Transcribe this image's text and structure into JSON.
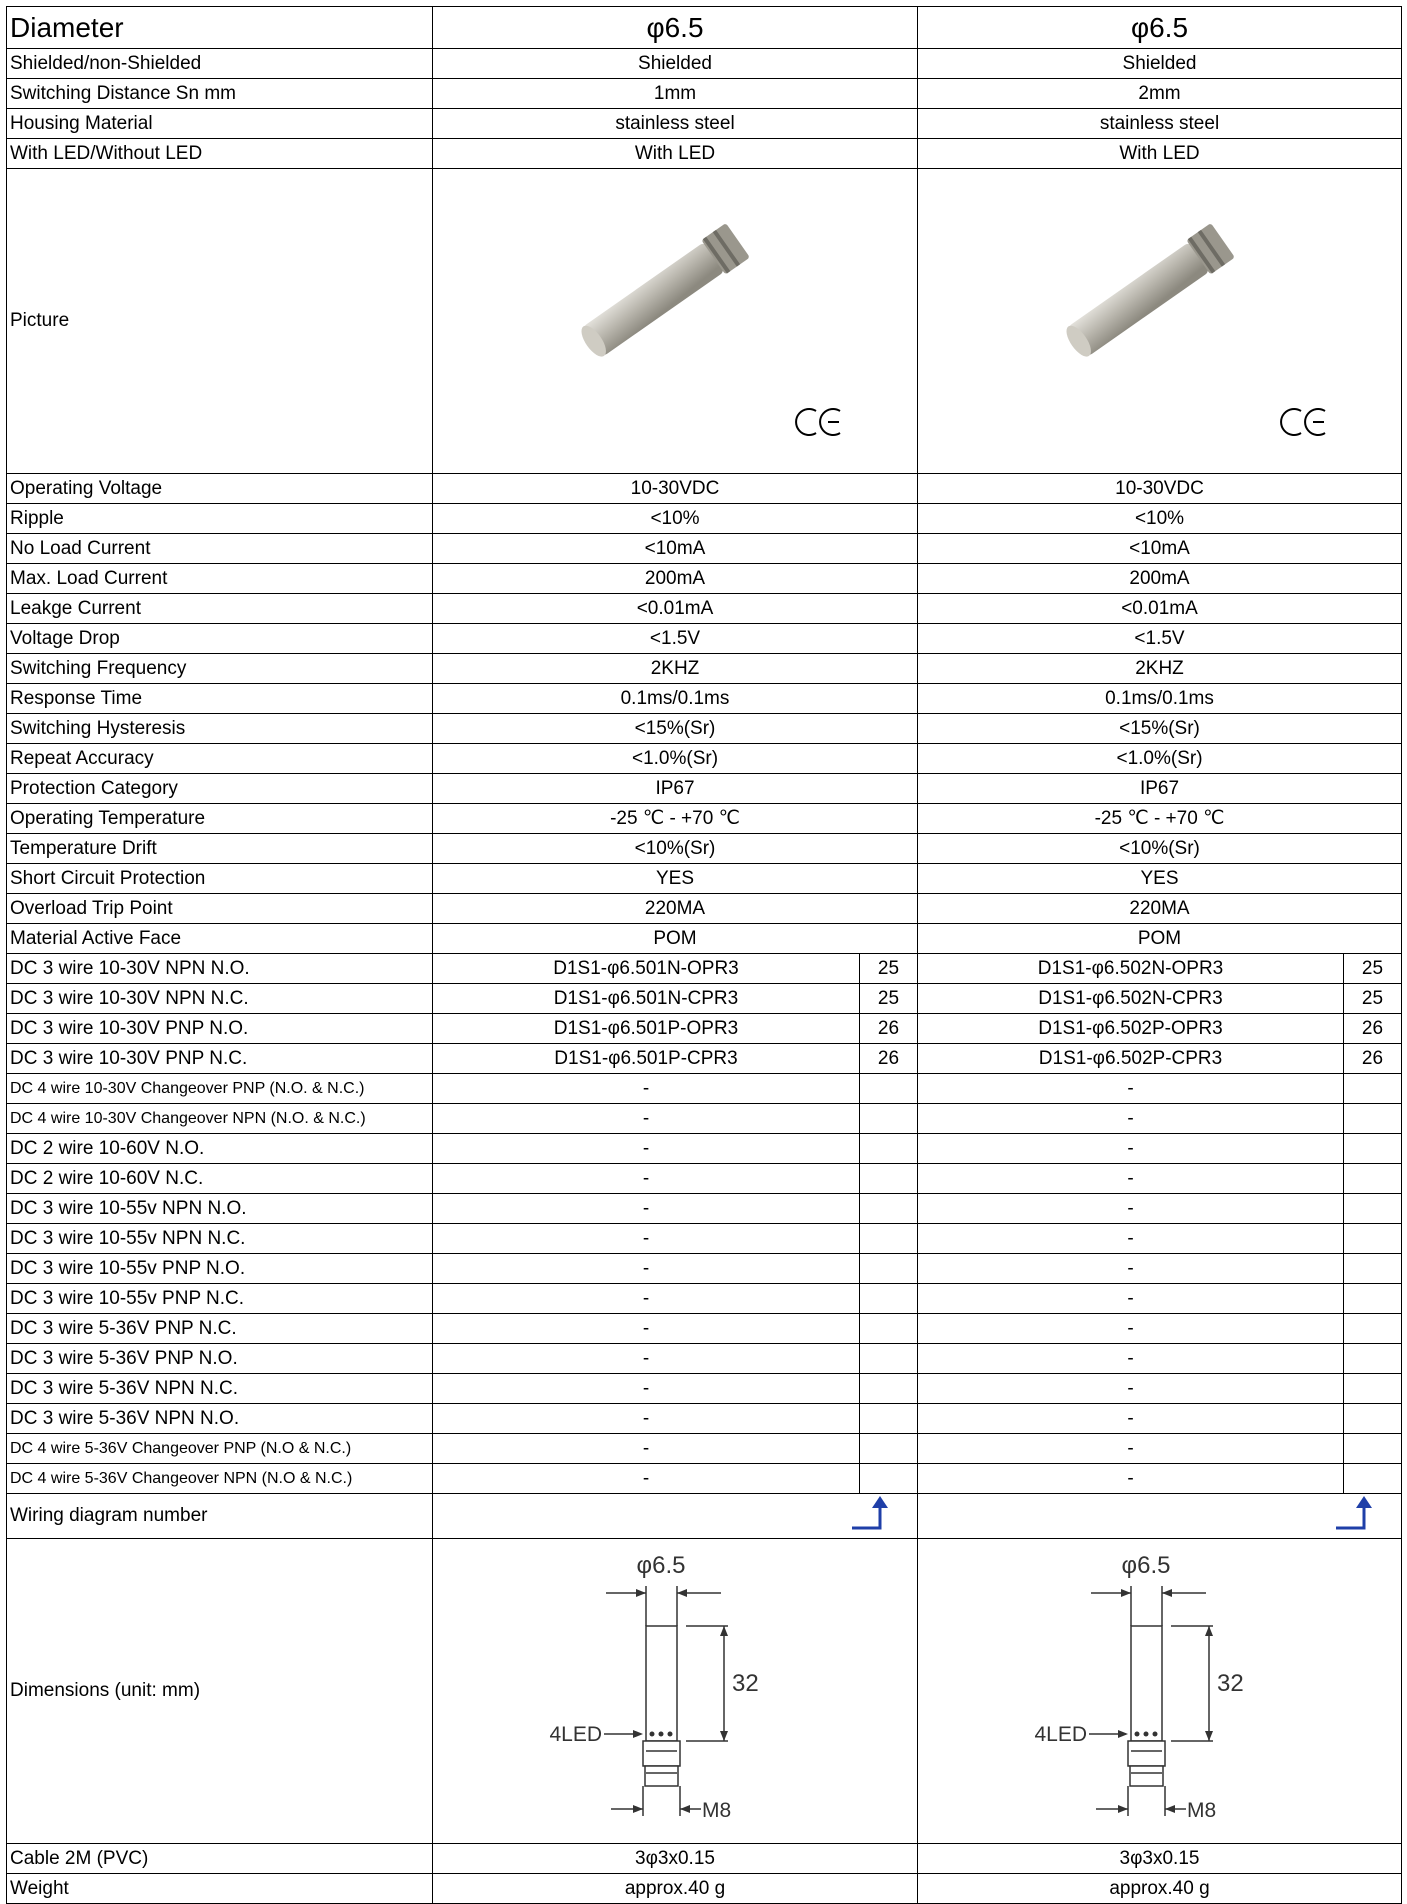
{
  "table": {
    "diameter": {
      "label": "Diameter",
      "values": [
        "φ6.5",
        "φ6.5"
      ]
    },
    "general": [
      {
        "label": "Shielded/non-Shielded",
        "values": [
          "Shielded",
          "Shielded"
        ]
      },
      {
        "label": "Switching Distance Sn mm",
        "values": [
          "1mm",
          "2mm"
        ]
      },
      {
        "label": "Housing Material",
        "values": [
          "stainless steel",
          "stainless steel"
        ]
      },
      {
        "label": "With LED/Without LED",
        "values": [
          "With LED",
          "With LED"
        ]
      }
    ],
    "picture": {
      "label": "Picture"
    },
    "electrical": [
      {
        "label": "Operating Voltage",
        "values": [
          "10-30VDC",
          "10-30VDC"
        ]
      },
      {
        "label": "Ripple",
        "values": [
          "<10%",
          "<10%"
        ]
      },
      {
        "label": "No Load Current",
        "values": [
          "<10mA",
          "<10mA"
        ]
      },
      {
        "label": "Max. Load Current",
        "values": [
          "200mA",
          "200mA"
        ]
      },
      {
        "label": "Leakge Current",
        "values": [
          "<0.01mA",
          "<0.01mA"
        ]
      },
      {
        "label": "Voltage Drop",
        "values": [
          "<1.5V",
          "<1.5V"
        ]
      },
      {
        "label": "Switching Frequency",
        "values": [
          "2KHZ",
          "2KHZ"
        ]
      },
      {
        "label": "Response Time",
        "values": [
          "0.1ms/0.1ms",
          "0.1ms/0.1ms"
        ]
      },
      {
        "label": "Switching Hysteresis",
        "values": [
          "<15%(Sr)",
          "<15%(Sr)"
        ]
      },
      {
        "label": "Repeat Accuracy",
        "values": [
          "<1.0%(Sr)",
          "<1.0%(Sr)"
        ]
      },
      {
        "label": "Protection Category",
        "values": [
          "IP67",
          "IP67"
        ]
      },
      {
        "label": "Operating Temperature",
        "values": [
          "-25 ℃ - +70 ℃",
          "-25 ℃ - +70 ℃"
        ]
      },
      {
        "label": "Temperature Drift",
        "values": [
          "<10%(Sr)",
          "<10%(Sr)"
        ]
      },
      {
        "label": "Short Circuit Protection",
        "values": [
          "YES",
          "YES"
        ]
      },
      {
        "label": "Overload Trip Point",
        "values": [
          "220MA",
          "220MA"
        ]
      },
      {
        "label": "Material Active Face",
        "values": [
          "POM",
          "POM"
        ]
      }
    ],
    "models": [
      {
        "label": "DC 3 wire 10-30V NPN N.O.",
        "cells": [
          [
            "D1S1-φ6.501N-OPR3",
            "25"
          ],
          [
            "D1S1-φ6.502N-OPR3",
            "25"
          ]
        ]
      },
      {
        "label": "DC 3 wire 10-30V NPN N.C.",
        "cells": [
          [
            "D1S1-φ6.501N-CPR3",
            "25"
          ],
          [
            "D1S1-φ6.502N-CPR3",
            "25"
          ]
        ]
      },
      {
        "label": "DC 3 wire 10-30V PNP N.O.",
        "cells": [
          [
            "D1S1-φ6.501P-OPR3",
            "26"
          ],
          [
            "D1S1-φ6.502P-OPR3",
            "26"
          ]
        ]
      },
      {
        "label": "DC 3 wire 10-30V PNP N.C.",
        "cells": [
          [
            "D1S1-φ6.501P-CPR3",
            "26"
          ],
          [
            "D1S1-φ6.502P-CPR3",
            "26"
          ]
        ]
      },
      {
        "label": "DC 4 wire 10-30V Changeover PNP (N.O. & N.C.)",
        "cells": [
          [
            "-"
          ],
          [
            "-"
          ]
        ]
      },
      {
        "label": "DC 4 wire 10-30V Changeover NPN (N.O. & N.C.)",
        "cells": [
          [
            "-"
          ],
          [
            "-"
          ]
        ]
      },
      {
        "label": "DC 2 wire 10-60V N.O.",
        "cells": [
          [
            "-"
          ],
          [
            "-"
          ]
        ]
      },
      {
        "label": "DC 2 wire 10-60V N.C.",
        "cells": [
          [
            "-"
          ],
          [
            "-"
          ]
        ]
      },
      {
        "label": "DC 3 wire 10-55v NPN N.O.",
        "cells": [
          [
            "-"
          ],
          [
            "-"
          ]
        ]
      },
      {
        "label": "DC 3 wire 10-55v NPN N.C.",
        "cells": [
          [
            "-"
          ],
          [
            "-"
          ]
        ]
      },
      {
        "label": "DC 3 wire 10-55v PNP N.O.",
        "cells": [
          [
            "-"
          ],
          [
            "-"
          ]
        ]
      },
      {
        "label": "DC 3 wire 10-55v PNP N.C.",
        "cells": [
          [
            "-"
          ],
          [
            "-"
          ]
        ]
      },
      {
        "label": "DC 3 wire 5-36V PNP N.C.",
        "cells": [
          [
            "-"
          ],
          [
            "-"
          ]
        ]
      },
      {
        "label": "DC 3 wire 5-36V PNP N.O.",
        "cells": [
          [
            "-"
          ],
          [
            "-"
          ]
        ]
      },
      {
        "label": "DC 3 wire 5-36V NPN N.C.",
        "cells": [
          [
            "-"
          ],
          [
            "-"
          ]
        ]
      },
      {
        "label": "DC 3 wire 5-36V NPN N.O.",
        "cells": [
          [
            "-"
          ],
          [
            "-"
          ]
        ]
      },
      {
        "label": "DC 4 wire 5-36V Changeover PNP (N.O & N.C.)",
        "cells": [
          [
            "-"
          ],
          [
            "-"
          ]
        ]
      },
      {
        "label": "DC 4 wire 5-36V Changeover NPN (N.O & N.C.)",
        "cells": [
          [
            "-"
          ],
          [
            "-"
          ]
        ]
      }
    ],
    "wiring": {
      "label": "Wiring diagram number"
    },
    "dimensions": {
      "label": "Dimensions (unit: mm)",
      "drawings": [
        {
          "diameter": "φ6.5",
          "length": "32",
          "led": "4LED",
          "thread": "M8"
        },
        {
          "diameter": "φ6.5",
          "length": "32",
          "led": "4LED",
          "thread": "M8"
        }
      ]
    },
    "tail": [
      {
        "label": "Cable 2M (PVC)",
        "values": [
          "3φ3x0.15",
          "3φ3x0.15"
        ]
      },
      {
        "label": "Weight",
        "values": [
          "approx.40 g",
          "approx.40 g"
        ]
      }
    ]
  }
}
